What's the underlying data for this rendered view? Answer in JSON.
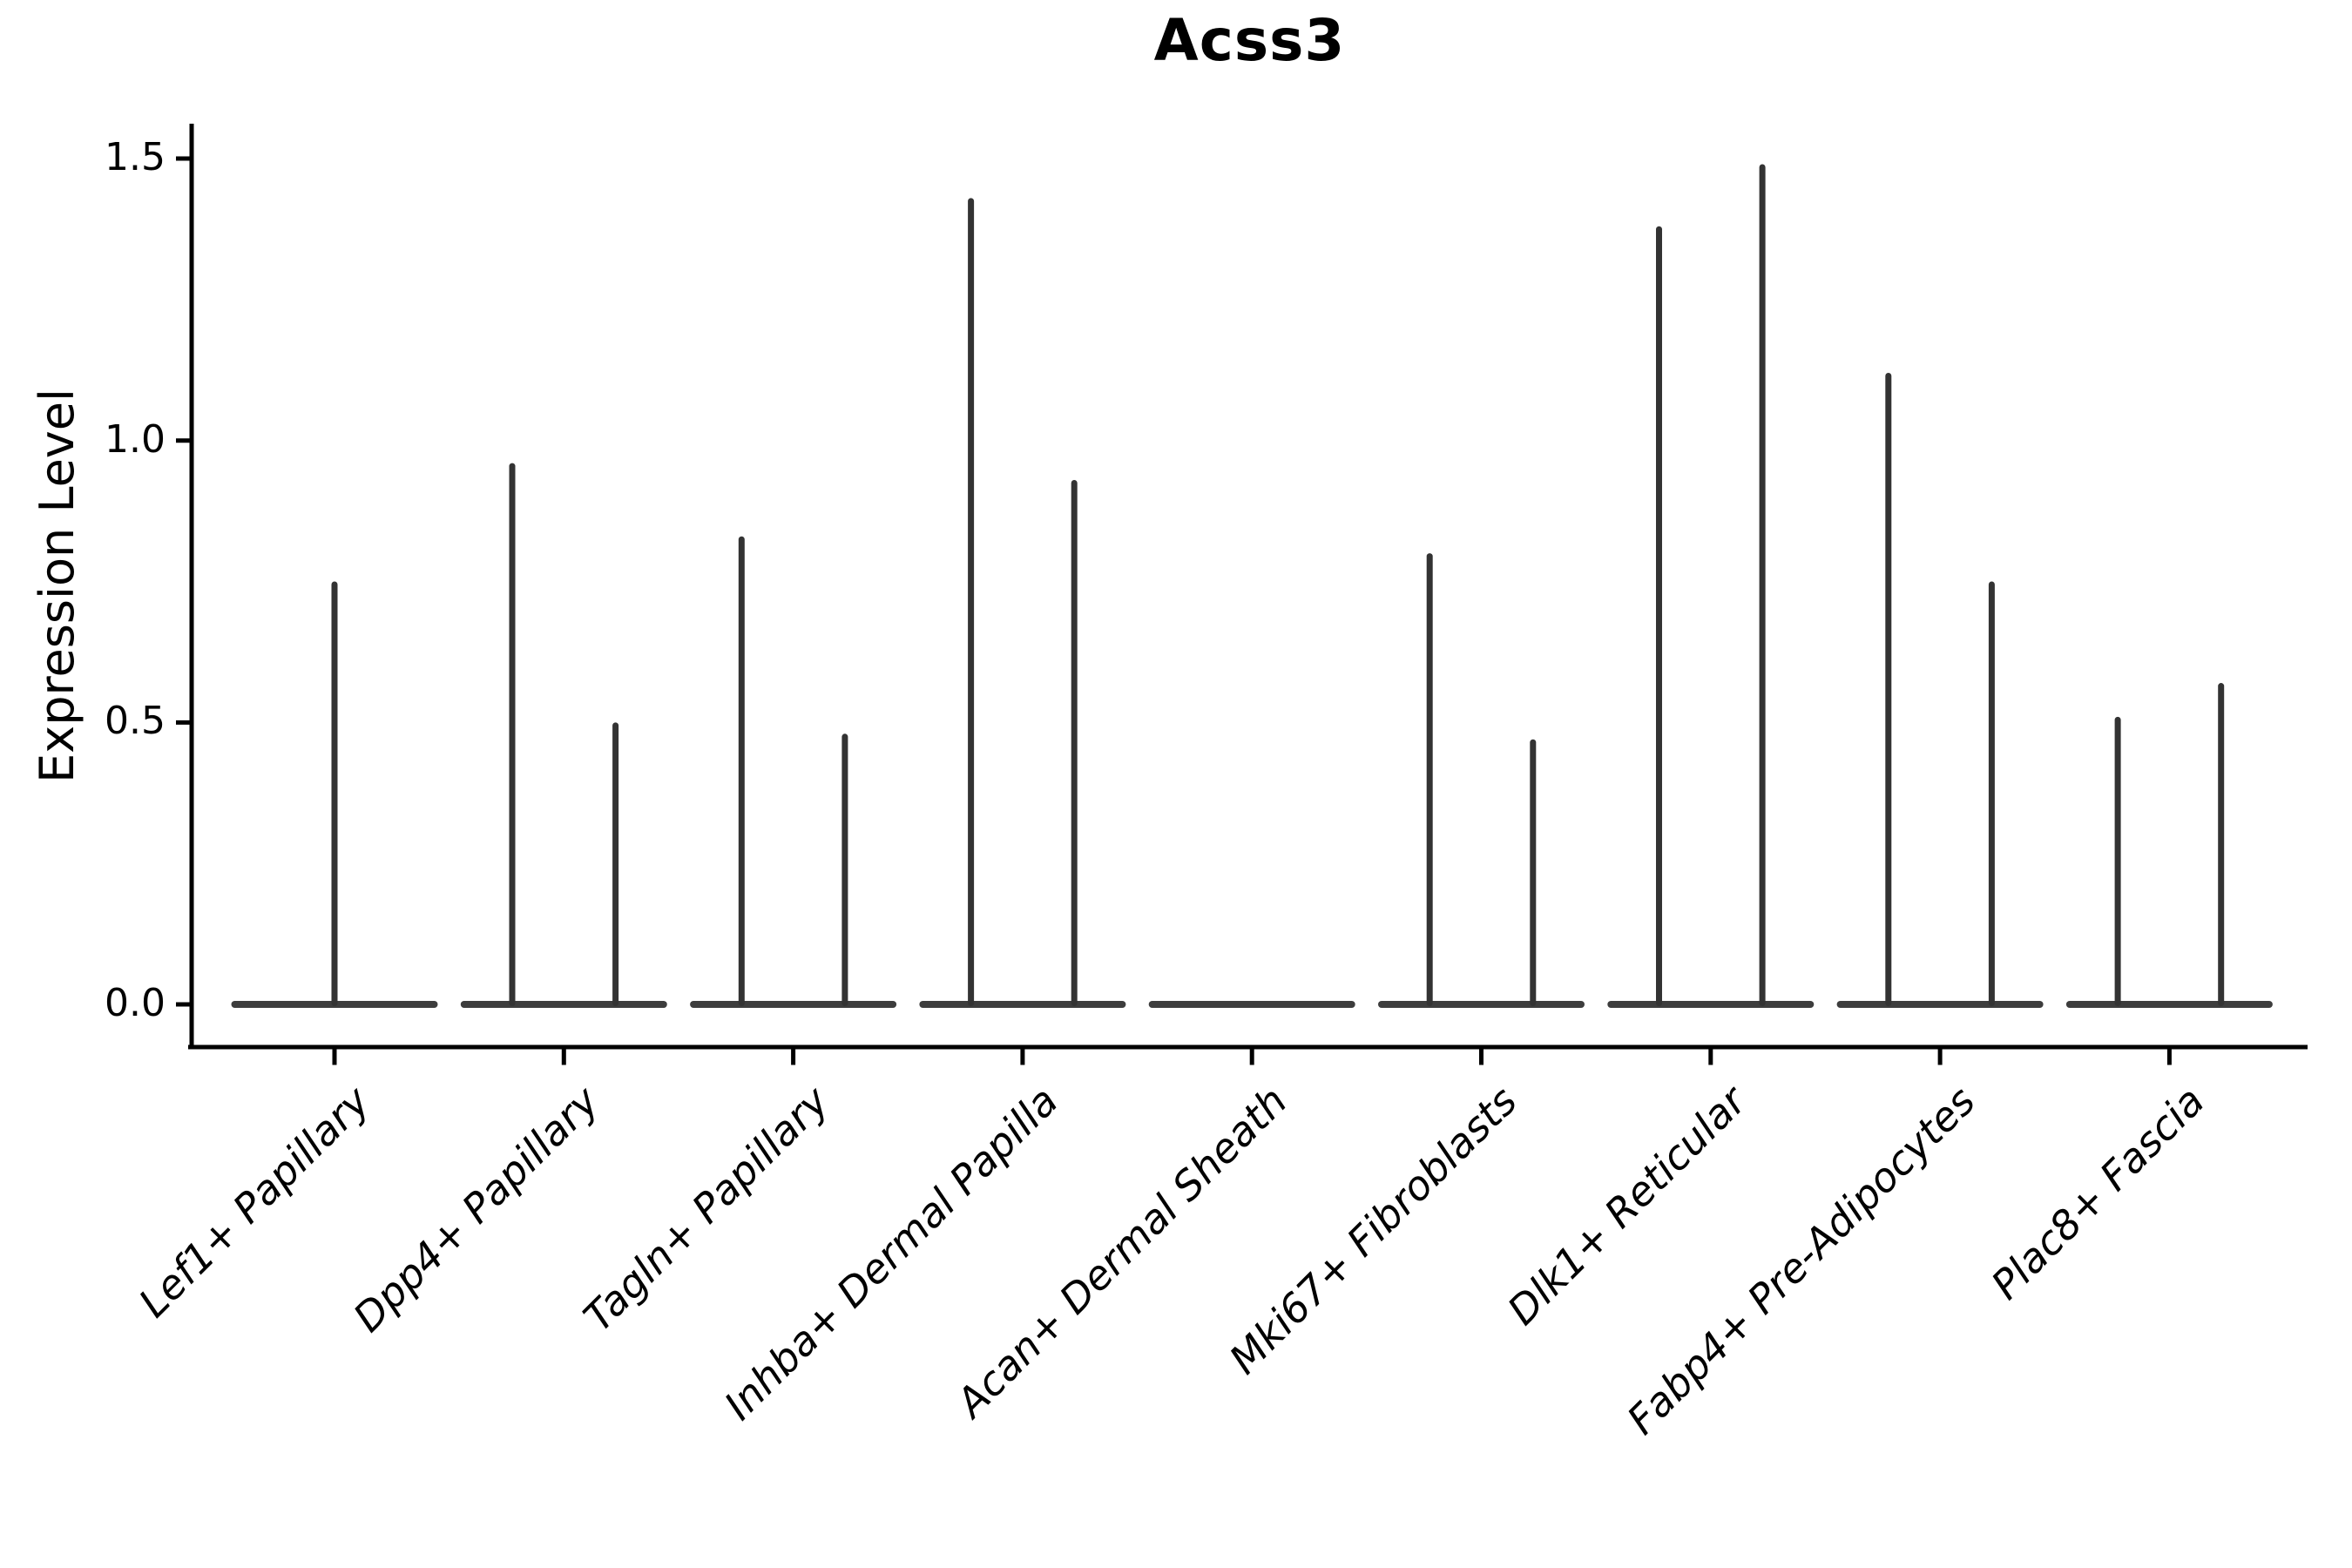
{
  "title": "Acss3",
  "y_axis": {
    "label": "Expression Level",
    "tick_labels": [
      "0.0",
      "0.5",
      "1.0",
      "1.5"
    ]
  },
  "x_axis": {
    "label": ""
  },
  "chart_data": {
    "type": "violin",
    "title": "Acss3",
    "xlabel": "",
    "ylabel": "Expression Level",
    "ylim": [
      0,
      1.55
    ],
    "yticks": [
      0,
      0.5,
      1.0,
      1.5
    ],
    "grid": false,
    "legend_position": "none",
    "shape_note": "Seurat-style expression violins: each violin collapses to a wide flat base at y=0 (most cells zero) with a single thin vertical spike rising to the max expression value; groups with two violins are dodged side by side.",
    "categories": [
      "Lef1+ Papillary",
      "Dpp4+ Papillary",
      "Tagln+ Papillary",
      "Inhba+ Dermal Papilla",
      "Acan+ Dermal Sheath",
      "Mki67+ Fibroblasts",
      "Dlk1+ Reticular",
      "Fabp4+ Pre-Adipocytes",
      "Plac8+ Fascia"
    ],
    "groups": [
      {
        "category": "Lef1+ Papillary",
        "violins": [
          {
            "position": "center",
            "max_expression": 0.75
          }
        ]
      },
      {
        "category": "Dpp4+ Papillary",
        "violins": [
          {
            "position": "left",
            "max_expression": 0.96
          },
          {
            "position": "right",
            "max_expression": 0.5
          }
        ]
      },
      {
        "category": "Tagln+ Papillary",
        "violins": [
          {
            "position": "left",
            "max_expression": 0.83
          },
          {
            "position": "right",
            "max_expression": 0.48
          }
        ]
      },
      {
        "category": "Inhba+ Dermal Papilla",
        "violins": [
          {
            "position": "left",
            "max_expression": 1.43
          },
          {
            "position": "right",
            "max_expression": 0.93
          }
        ]
      },
      {
        "category": "Acan+ Dermal Sheath",
        "violins": []
      },
      {
        "category": "Mki67+ Fibroblasts",
        "violins": [
          {
            "position": "left",
            "max_expression": 0.8
          },
          {
            "position": "right",
            "max_expression": 0.47
          }
        ]
      },
      {
        "category": "Dlk1+ Reticular",
        "violins": [
          {
            "position": "left",
            "max_expression": 1.38
          },
          {
            "position": "right",
            "max_expression": 1.49
          }
        ]
      },
      {
        "category": "Fabp4+ Pre-Adipocytes",
        "violins": [
          {
            "position": "left",
            "max_expression": 1.12
          },
          {
            "position": "right",
            "max_expression": 0.75
          }
        ]
      },
      {
        "category": "Plac8+ Fascia",
        "violins": [
          {
            "position": "left",
            "max_expression": 0.51
          },
          {
            "position": "right",
            "max_expression": 0.57
          }
        ]
      }
    ]
  },
  "colors": {
    "violin_stroke": "#333333",
    "violin_base": "#3d3d3d",
    "axis": "#000000",
    "text": "#000000",
    "background": "#ffffff"
  }
}
